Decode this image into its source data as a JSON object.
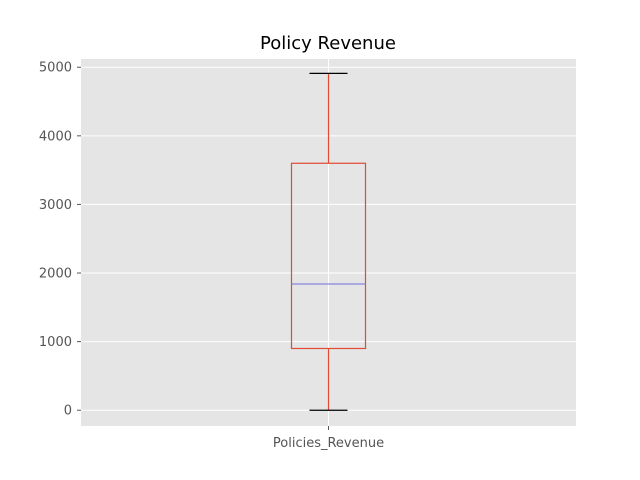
{
  "chart_data": {
    "type": "box",
    "title": "Policy Revenue",
    "categories": [
      "Policies_Revenue"
    ],
    "ylim": [
      -230,
      5120
    ],
    "yticks": [
      0,
      1000,
      2000,
      3000,
      4000,
      5000
    ],
    "boxes": [
      {
        "category": "Policies_Revenue",
        "whisker_low": 0,
        "q1": 900,
        "median": 1840,
        "q3": 3600,
        "whisker_high": 4910
      }
    ],
    "grid": true,
    "colors": {
      "background": "#e5e5e5",
      "grid": "#ffffff",
      "box": "#e24a33",
      "median": "#8888dd",
      "caps": "#000000",
      "text": "#555555"
    }
  }
}
